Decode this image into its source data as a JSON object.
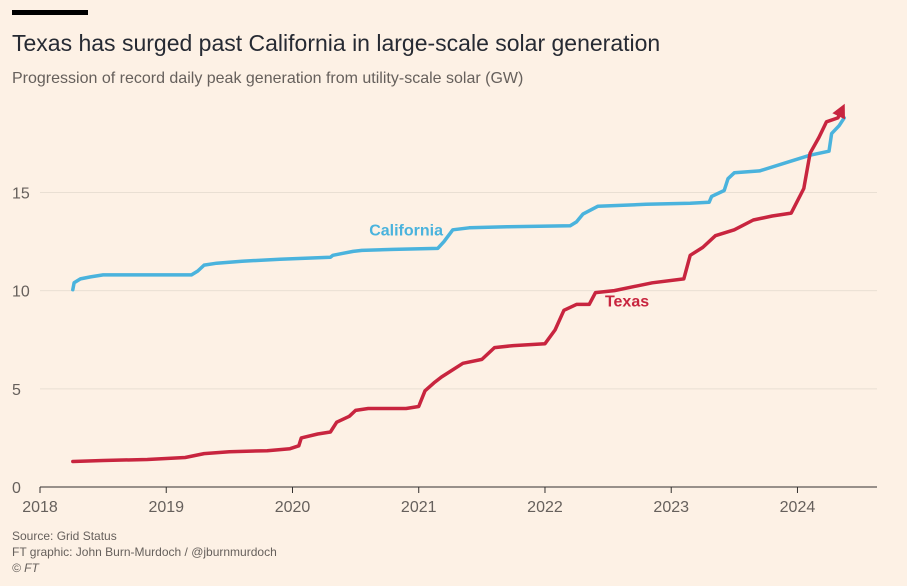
{
  "header": {
    "title": "Texas has surged past California in large-scale solar generation",
    "subtitle": "Progression of record daily peak generation from utility-scale solar (GW)"
  },
  "footer": {
    "source": "Source: Grid Status",
    "credit": "FT graphic: John Burn-Murdoch / @jburnmurdoch",
    "copyright": "© FT"
  },
  "colors": {
    "background": "#fdf1e5",
    "california": "#4ab3dd",
    "texas": "#c8253f",
    "gridline": "#e9dfd3"
  },
  "chart_data": {
    "type": "line",
    "title": "Texas has surged past California in large-scale solar generation",
    "subtitle": "Progression of record daily peak generation from utility-scale solar (GW)",
    "xlabel": "",
    "ylabel": "",
    "xlim": [
      2018,
      2024.63
    ],
    "ylim": [
      0,
      19.2
    ],
    "x_ticks": [
      2018,
      2019,
      2020,
      2021,
      2022,
      2023,
      2024
    ],
    "y_ticks": [
      0,
      5,
      10,
      15
    ],
    "grid": true,
    "legend": "inline labels",
    "series": [
      {
        "name": "California",
        "label_at": [
          2020.9,
          12.8
        ],
        "points": [
          [
            2018.26,
            10.05
          ],
          [
            2018.27,
            10.4
          ],
          [
            2018.32,
            10.6
          ],
          [
            2018.4,
            10.7
          ],
          [
            2018.5,
            10.8
          ],
          [
            2018.8,
            10.8
          ],
          [
            2019.2,
            10.8
          ],
          [
            2019.25,
            11.0
          ],
          [
            2019.3,
            11.3
          ],
          [
            2019.4,
            11.4
          ],
          [
            2019.6,
            11.5
          ],
          [
            2019.9,
            11.6
          ],
          [
            2020.3,
            11.7
          ],
          [
            2020.32,
            11.8
          ],
          [
            2020.4,
            11.9
          ],
          [
            2020.48,
            12.0
          ],
          [
            2020.55,
            12.05
          ],
          [
            2020.8,
            12.1
          ],
          [
            2021.15,
            12.15
          ],
          [
            2021.2,
            12.5
          ],
          [
            2021.27,
            13.1
          ],
          [
            2021.4,
            13.2
          ],
          [
            2021.7,
            13.25
          ],
          [
            2022.2,
            13.3
          ],
          [
            2022.25,
            13.5
          ],
          [
            2022.3,
            13.9
          ],
          [
            2022.42,
            14.3
          ],
          [
            2022.8,
            14.4
          ],
          [
            2023.15,
            14.45
          ],
          [
            2023.3,
            14.5
          ],
          [
            2023.32,
            14.8
          ],
          [
            2023.42,
            15.1
          ],
          [
            2023.45,
            15.7
          ],
          [
            2023.5,
            16.0
          ],
          [
            2023.7,
            16.1
          ],
          [
            2023.95,
            16.6
          ],
          [
            2024.1,
            16.9
          ],
          [
            2024.25,
            17.1
          ],
          [
            2024.27,
            18.0
          ],
          [
            2024.33,
            18.4
          ],
          [
            2024.37,
            18.8
          ]
        ]
      },
      {
        "name": "Texas",
        "label_at": [
          2022.65,
          9.2
        ],
        "points": [
          [
            2018.26,
            1.3
          ],
          [
            2018.5,
            1.35
          ],
          [
            2018.85,
            1.4
          ],
          [
            2019.15,
            1.5
          ],
          [
            2019.3,
            1.7
          ],
          [
            2019.5,
            1.8
          ],
          [
            2019.8,
            1.85
          ],
          [
            2019.98,
            1.95
          ],
          [
            2020.05,
            2.1
          ],
          [
            2020.07,
            2.5
          ],
          [
            2020.2,
            2.7
          ],
          [
            2020.3,
            2.8
          ],
          [
            2020.35,
            3.3
          ],
          [
            2020.45,
            3.6
          ],
          [
            2020.5,
            3.9
          ],
          [
            2020.6,
            4.0
          ],
          [
            2020.9,
            4.0
          ],
          [
            2021.0,
            4.1
          ],
          [
            2021.05,
            4.9
          ],
          [
            2021.12,
            5.3
          ],
          [
            2021.18,
            5.6
          ],
          [
            2021.35,
            6.3
          ],
          [
            2021.5,
            6.5
          ],
          [
            2021.6,
            7.1
          ],
          [
            2021.75,
            7.2
          ],
          [
            2022.0,
            7.3
          ],
          [
            2022.08,
            8.0
          ],
          [
            2022.15,
            9.0
          ],
          [
            2022.25,
            9.3
          ],
          [
            2022.35,
            9.3
          ],
          [
            2022.4,
            9.9
          ],
          [
            2022.55,
            10.0
          ],
          [
            2022.7,
            10.2
          ],
          [
            2022.85,
            10.4
          ],
          [
            2023.1,
            10.6
          ],
          [
            2023.15,
            11.8
          ],
          [
            2023.25,
            12.2
          ],
          [
            2023.35,
            12.8
          ],
          [
            2023.5,
            13.1
          ],
          [
            2023.65,
            13.6
          ],
          [
            2023.8,
            13.8
          ],
          [
            2023.95,
            13.95
          ],
          [
            2024.05,
            15.2
          ],
          [
            2024.1,
            17.0
          ],
          [
            2024.17,
            17.8
          ],
          [
            2024.23,
            18.6
          ],
          [
            2024.32,
            18.8
          ],
          [
            2024.35,
            19.2
          ]
        ]
      }
    ]
  }
}
